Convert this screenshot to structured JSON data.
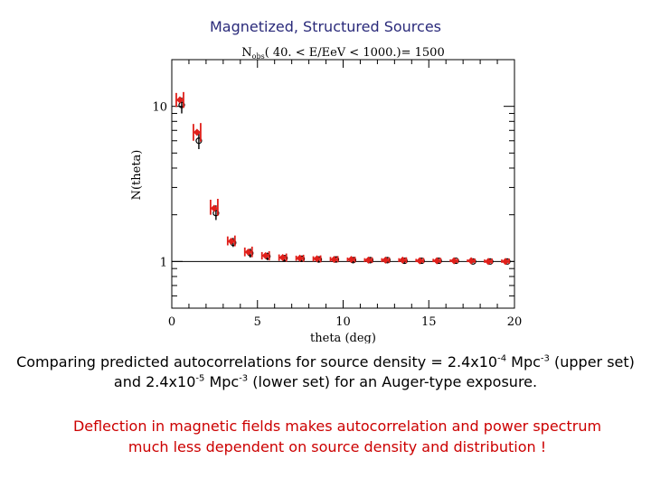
{
  "slide": {
    "title": "Magnetized, Structured Sources",
    "caption_line1_pre": "Comparing predicted autocorrelations for source density = 2.4x10",
    "caption_line1_exp1": "-4",
    "caption_line1_mid": " Mpc",
    "caption_line1_exp2": "-3",
    "caption_line1_post": " (upper set)",
    "caption_line2_pre": "and 2.4x10",
    "caption_line2_exp1": "-5",
    "caption_line2_mid": " Mpc",
    "caption_line2_exp2": "-3",
    "caption_line2_post": " (lower set) for an Auger-type exposure.",
    "note_line1": "Deflection in magnetic fields makes autocorrelation and power spectrum",
    "note_line2": "much less dependent on source density and distribution !"
  },
  "chart_data": {
    "type": "scatter",
    "title_main": "N",
    "title_sub": "obs",
    "title_rest": "( 40. < E/EeV < 1000.)= 1500",
    "xlabel": "theta (deg)",
    "ylabel": "N(theta)",
    "xlim": [
      0,
      20
    ],
    "ylim": [
      0.5,
      20
    ],
    "yscale": "log",
    "x_ticks": [
      0,
      5,
      10,
      15,
      20
    ],
    "x_tick_labels": [
      "0",
      "5",
      "10",
      "15",
      "20"
    ],
    "y_tick_values": [
      1,
      10
    ],
    "y_tick_labels": [
      "1",
      "10"
    ],
    "reference_line_y": 1,
    "colors": {
      "upper": "#e0201b",
      "lower": "#000000",
      "reference": "#000000"
    },
    "series": [
      {
        "name": "upper set (2.4x10^-4 Mpc^-3)",
        "marker": "red diamond",
        "points": [
          {
            "x": 0.5,
            "y": 11.0,
            "lo": 9.9,
            "hi": 12.2
          },
          {
            "x": 1.5,
            "y": 6.8,
            "lo": 6.0,
            "hi": 7.7
          },
          {
            "x": 2.5,
            "y": 2.2,
            "lo": 2.0,
            "hi": 2.5
          },
          {
            "x": 3.5,
            "y": 1.35,
            "lo": 1.27,
            "hi": 1.45
          },
          {
            "x": 4.5,
            "y": 1.15,
            "lo": 1.08,
            "hi": 1.23
          },
          {
            "x": 5.5,
            "y": 1.09,
            "lo": 1.03,
            "hi": 1.15
          },
          {
            "x": 6.5,
            "y": 1.06,
            "lo": 1.01,
            "hi": 1.11
          },
          {
            "x": 7.5,
            "y": 1.05,
            "lo": 1.01,
            "hi": 1.09
          },
          {
            "x": 8.5,
            "y": 1.04,
            "lo": 1.0,
            "hi": 1.08
          },
          {
            "x": 9.5,
            "y": 1.03,
            "lo": 1.0,
            "hi": 1.07
          },
          {
            "x": 10.5,
            "y": 1.03,
            "lo": 1.0,
            "hi": 1.06
          },
          {
            "x": 11.5,
            "y": 1.02,
            "lo": 0.99,
            "hi": 1.05
          },
          {
            "x": 12.5,
            "y": 1.02,
            "lo": 0.99,
            "hi": 1.05
          },
          {
            "x": 13.5,
            "y": 1.02,
            "lo": 0.99,
            "hi": 1.05
          },
          {
            "x": 14.5,
            "y": 1.01,
            "lo": 0.99,
            "hi": 1.04
          },
          {
            "x": 15.5,
            "y": 1.01,
            "lo": 0.99,
            "hi": 1.04
          },
          {
            "x": 16.5,
            "y": 1.01,
            "lo": 0.99,
            "hi": 1.03
          },
          {
            "x": 17.5,
            "y": 1.01,
            "lo": 0.99,
            "hi": 1.03
          },
          {
            "x": 18.5,
            "y": 1.0,
            "lo": 0.98,
            "hi": 1.03
          },
          {
            "x": 19.5,
            "y": 1.0,
            "lo": 0.98,
            "hi": 1.03
          }
        ]
      },
      {
        "name": "lower set (2.4x10^-5 Mpc^-3)",
        "marker": "black open circle",
        "points": [
          {
            "x": 0.5,
            "y": 10.2,
            "lo": 9.0,
            "hi": 11.4
          },
          {
            "x": 1.5,
            "y": 6.0,
            "lo": 5.3,
            "hi": 6.9
          },
          {
            "x": 2.5,
            "y": 2.05,
            "lo": 1.85,
            "hi": 2.3
          },
          {
            "x": 3.5,
            "y": 1.32,
            "lo": 1.24,
            "hi": 1.42
          },
          {
            "x": 4.5,
            "y": 1.13,
            "lo": 1.06,
            "hi": 1.21
          },
          {
            "x": 5.5,
            "y": 1.08,
            "lo": 1.02,
            "hi": 1.14
          },
          {
            "x": 6.5,
            "y": 1.05,
            "lo": 1.0,
            "hi": 1.1
          },
          {
            "x": 7.5,
            "y": 1.04,
            "lo": 1.0,
            "hi": 1.09
          },
          {
            "x": 8.5,
            "y": 1.03,
            "lo": 0.99,
            "hi": 1.07
          },
          {
            "x": 9.5,
            "y": 1.03,
            "lo": 0.99,
            "hi": 1.07
          },
          {
            "x": 10.5,
            "y": 1.02,
            "lo": 0.99,
            "hi": 1.06
          },
          {
            "x": 11.5,
            "y": 1.02,
            "lo": 0.99,
            "hi": 1.05
          },
          {
            "x": 12.5,
            "y": 1.02,
            "lo": 0.99,
            "hi": 1.05
          },
          {
            "x": 13.5,
            "y": 1.01,
            "lo": 0.98,
            "hi": 1.04
          },
          {
            "x": 14.5,
            "y": 1.01,
            "lo": 0.98,
            "hi": 1.04
          },
          {
            "x": 15.5,
            "y": 1.01,
            "lo": 0.98,
            "hi": 1.04
          },
          {
            "x": 16.5,
            "y": 1.01,
            "lo": 0.98,
            "hi": 1.03
          },
          {
            "x": 17.5,
            "y": 1.0,
            "lo": 0.98,
            "hi": 1.03
          },
          {
            "x": 18.5,
            "y": 1.0,
            "lo": 0.98,
            "hi": 1.03
          },
          {
            "x": 19.5,
            "y": 1.0,
            "lo": 0.98,
            "hi": 1.03
          }
        ]
      }
    ]
  }
}
